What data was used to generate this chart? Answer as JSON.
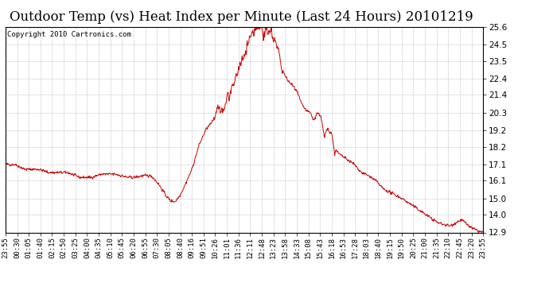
{
  "title": "Outdoor Temp (vs) Heat Index per Minute (Last 24 Hours) 20101219",
  "copyright_text": "Copyright 2010 Cartronics.com",
  "line_color": "#cc0000",
  "background_color": "#ffffff",
  "grid_color": "#aaaaaa",
  "ymin": 12.9,
  "ymax": 25.6,
  "yticks": [
    12.9,
    14.0,
    15.0,
    16.1,
    17.1,
    18.2,
    19.2,
    20.3,
    21.4,
    22.4,
    23.5,
    24.5,
    25.6
  ],
  "xtick_labels": [
    "23:55",
    "00:30",
    "01:05",
    "01:40",
    "02:15",
    "02:50",
    "03:25",
    "04:00",
    "04:35",
    "05:10",
    "05:45",
    "06:20",
    "06:55",
    "07:30",
    "08:05",
    "08:40",
    "09:16",
    "09:51",
    "10:26",
    "11:01",
    "11:36",
    "12:11",
    "12:48",
    "13:23",
    "13:58",
    "14:33",
    "15:08",
    "15:43",
    "16:18",
    "16:53",
    "17:28",
    "18:03",
    "18:40",
    "19:15",
    "19:50",
    "20:25",
    "21:00",
    "21:35",
    "22:10",
    "22:45",
    "23:20",
    "23:55"
  ],
  "title_fontsize": 12,
  "copyright_fontsize": 6.5,
  "tick_label_fontsize": 6.5,
  "ytick_label_fontsize": 7.5
}
